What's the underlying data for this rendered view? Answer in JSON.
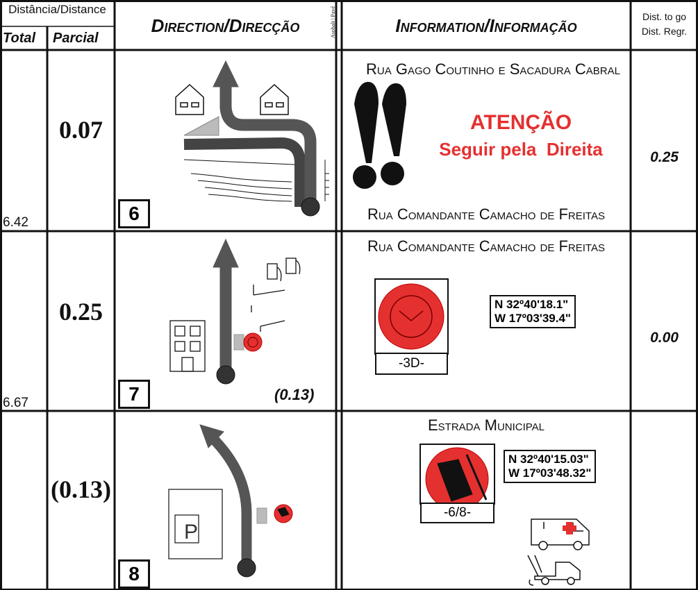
{
  "header": {
    "distance": "Distância/Distance",
    "total": "Total",
    "partial": "Parcial",
    "direction": "Direction/Direcção",
    "surface": [
      "Asphalt",
      "Pavé"
    ],
    "information": "Information/Informação",
    "dist_to_go": [
      "Dist. to go",
      "Dist. Regr."
    ]
  },
  "rows": [
    {
      "total": "6.42",
      "partial": "0.07",
      "number": "6",
      "info": {
        "street_top": "Rua Gago Coutinho e Sacadura Cabral",
        "warning": [
          "ATENÇÃO",
          "Seguir pela  Direita"
        ],
        "street_bottom": "Rua Comandante Camacho de Freitas"
      },
      "dist_to_go": "0.25"
    },
    {
      "total": "6.67",
      "partial": "0.25",
      "number": "7",
      "note": "(0.13)",
      "info": {
        "street_top": "Rua Comandante Camacho de Freitas",
        "sign": "-3D-",
        "coords": [
          "N  32º40'18.1\"",
          "W 17º03'39.4\""
        ]
      },
      "dist_to_go": "0.00"
    },
    {
      "partial": "(0.13)",
      "number": "8",
      "info": {
        "street_top": "Estrada Municipal",
        "sign": "-6/8-",
        "coords": [
          "N  32º40'15.03\"",
          "W 17º03'48.32\""
        ]
      }
    }
  ]
}
